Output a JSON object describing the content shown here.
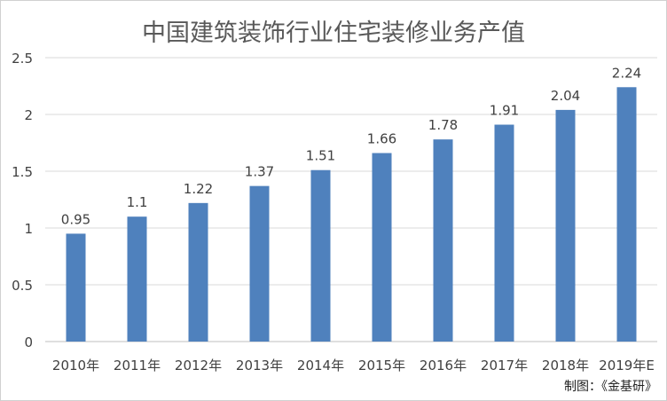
{
  "title": "中国建筑装饰行业住宅装修业务产值",
  "credit": "制图：《金基研》",
  "colors": {
    "bar": "#4f81bd",
    "grid": "#d9d9d9",
    "axis": "#bfbfbf",
    "text": "#404040",
    "title": "#595959"
  },
  "chart_data": {
    "type": "bar",
    "categories": [
      "2010年",
      "2011年",
      "2012年",
      "2013年",
      "2014年",
      "2015年",
      "2016年",
      "2017年",
      "2018年",
      "2019年E"
    ],
    "values": [
      0.95,
      1.1,
      1.22,
      1.37,
      1.51,
      1.66,
      1.78,
      1.91,
      2.04,
      2.24
    ],
    "data_labels": [
      "0.95",
      "1.1",
      "1.22",
      "1.37",
      "1.51",
      "1.66",
      "1.78",
      "1.91",
      "2.04",
      "2.24"
    ],
    "yticks": [
      0,
      0.5,
      1,
      1.5,
      2,
      2.5
    ],
    "ytick_labels": [
      "0",
      "0.5",
      "1",
      "1.5",
      "2",
      "2.5"
    ],
    "ylim": [
      0,
      2.5
    ],
    "grid": true,
    "legend": "none"
  }
}
